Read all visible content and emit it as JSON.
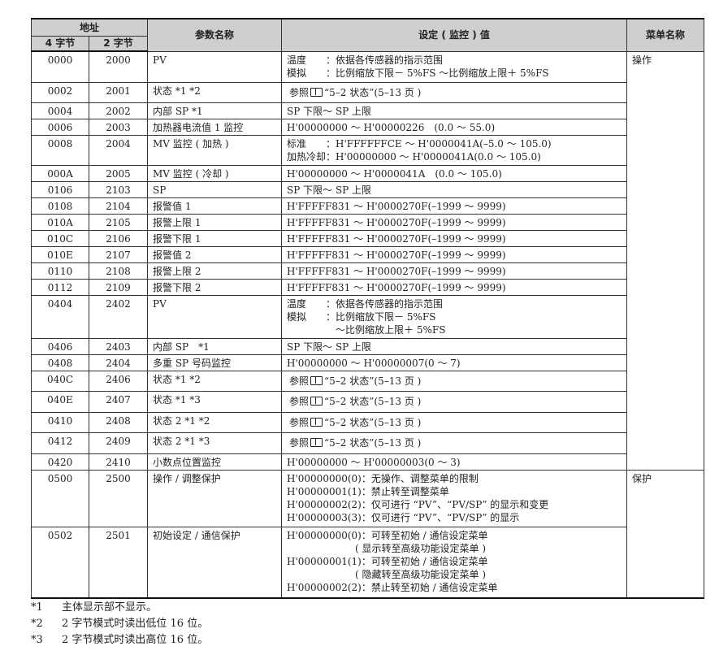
{
  "header": {
    "address": "地址",
    "bytes4": "4 字节",
    "bytes2": "2 字节",
    "param": "参数名称",
    "setting": "设定 ( 监控 ) 值",
    "menu": "菜单名称"
  },
  "rows": [
    {
      "a4": "0000",
      "a2": "2000",
      "name": "PV",
      "value": [
        "温度　　：依据各传感器的指示范围",
        "模拟　　：比例缩放下限－ 5%FS ～比例缩放上限＋ 5%FS"
      ]
    },
    {
      "a4": "0002",
      "a2": "2001",
      "name": "状态 *1 *2",
      "ref": "“5–2 状态”(5–13 页 )",
      "ref_prefix": "参照"
    },
    {
      "a4": "0004",
      "a2": "2002",
      "name": "内部 SP *1",
      "value": [
        "SP 下限～ SP 上限"
      ]
    },
    {
      "a4": "0006",
      "a2": "2003",
      "name": "加热器电流值 1 监控",
      "value": [
        "H'00000000 ～ H'00000226　(0.0 ～ 55.0)"
      ]
    },
    {
      "a4": "0008",
      "a2": "2004",
      "name": "MV 监控 ( 加热 )",
      "value": [
        "标准　　：H'FFFFFFCE ～ H'0000041A(–5.0 ～ 105.0)",
        "加热冷却：H'00000000 ～ H'0000041A(0.0 ～ 105.0)"
      ]
    },
    {
      "a4": "000A",
      "a2": "2005",
      "name": "MV 监控 ( 冷却 )",
      "value": [
        "H'00000000 ～ H'0000041A　(0.0 ～ 105.0)"
      ]
    },
    {
      "a4": "0106",
      "a2": "2103",
      "name": "SP",
      "value": [
        "SP 下限～ SP 上限"
      ]
    },
    {
      "a4": "0108",
      "a2": "2104",
      "name": "报警值 1",
      "value": [
        "H'FFFFF831 ～ H'0000270F(–1999 ～ 9999)"
      ]
    },
    {
      "a4": "010A",
      "a2": "2105",
      "name": "报警上限 1",
      "value": [
        "H'FFFFF831 ～ H'0000270F(–1999 ～ 9999)"
      ]
    },
    {
      "a4": "010C",
      "a2": "2106",
      "name": "报警下限 1",
      "value": [
        "H'FFFFF831 ～ H'0000270F(–1999 ～ 9999)"
      ]
    },
    {
      "a4": "010E",
      "a2": "2107",
      "name": "报警值 2",
      "value": [
        "H'FFFFF831 ～ H'0000270F(–1999 ～ 9999)"
      ]
    },
    {
      "a4": "0110",
      "a2": "2108",
      "name": "报警上限 2",
      "value": [
        "H'FFFFF831 ～ H'0000270F(–1999 ～ 9999)"
      ]
    },
    {
      "a4": "0112",
      "a2": "2109",
      "name": "报警下限 2",
      "value": [
        "H'FFFFF831 ～ H'0000270F(–1999 ～ 9999)"
      ]
    },
    {
      "a4": "0404",
      "a2": "2402",
      "name": "PV",
      "value": [
        "温度　　：依据各传感器的指示范围",
        "模拟　　：比例缩放下限－ 5%FS",
        "　　　　　～比例缩放上限＋ 5%FS"
      ]
    },
    {
      "a4": "0406",
      "a2": "2403",
      "name": "内部 SP　*1",
      "value": [
        "SP 下限～ SP 上限"
      ]
    },
    {
      "a4": "0408",
      "a2": "2404",
      "name": "多重 SP 号码监控",
      "value": [
        "H'00000000 ～ H'00000007(0 ～ 7)"
      ]
    },
    {
      "a4": "040C",
      "a2": "2406",
      "name": "状态 *1 *2",
      "ref": "“5–2 状态”(5–13 页 )",
      "ref_prefix": "参照"
    },
    {
      "a4": "040E",
      "a2": "2407",
      "name": "状态 *1 *3",
      "ref": "“5–2 状态”(5–13 页 )",
      "ref_prefix": "参照"
    },
    {
      "a4": "0410",
      "a2": "2408",
      "name": "状态 2 *1 *2",
      "ref": "“5–2 状态”(5–13 页 )",
      "ref_prefix": "参照"
    },
    {
      "a4": "0412",
      "a2": "2409",
      "name": "状态 2 *1 *3",
      "ref": "“5–2 状态”(5–13 页 )",
      "ref_prefix": "参照"
    },
    {
      "a4": "0420",
      "a2": "2410",
      "name": "小数点位置监控",
      "value": [
        "H'00000000 ～ H'00000003(0 ～ 3)"
      ]
    },
    {
      "a4": "0500",
      "a2": "2500",
      "name": "操作 / 调整保护",
      "value": [
        "H'00000000(0)：无操作、调整菜单的限制",
        "H'00000001(1)：禁止转至调整菜单",
        "H'00000002(2)：仅可进行 “PV”、“PV/SP” 的显示和变更",
        "H'00000003(3)：仅可进行 “PV”、“PV/SP” 的显示"
      ]
    },
    {
      "a4": "0502",
      "a2": "2501",
      "name": "初始设定 / 通信保护",
      "value": [
        "H'00000000(0)：可转至初始 / 通信设定菜单",
        "　　　　　　　( 显示转至高级功能设定菜单 )",
        "H'00000001(1)：可转至初始 / 通信设定菜单",
        "　　　　　　　( 隐藏转至高级功能设定菜单 )",
        "H'00000002(2)：禁止转至初始 / 通信设定菜单"
      ]
    }
  ],
  "menus": [
    {
      "label": "操作",
      "from": 0,
      "span": 21
    },
    {
      "label": "保护",
      "from": 21,
      "span": 2
    }
  ],
  "footnotes": [
    {
      "key": "*1",
      "text": "主体显示部不显示。"
    },
    {
      "key": "*2",
      "text": "2 字节模式时读出低位 16 位。"
    },
    {
      "key": "*3",
      "text": "2 字节模式时读出高位 16 位。"
    }
  ]
}
